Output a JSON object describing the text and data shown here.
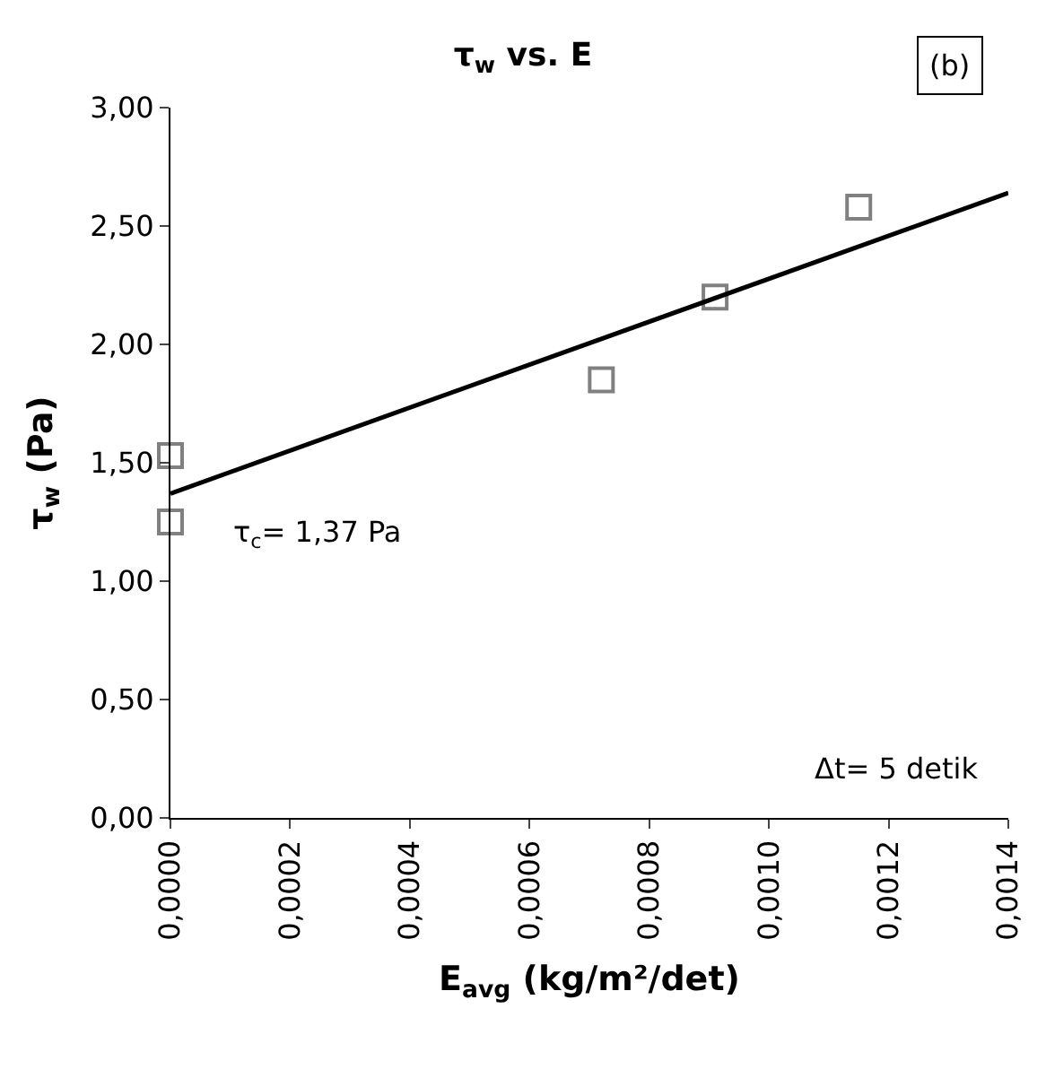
{
  "chart_data": {
    "type": "scatter",
    "title": "τ$_{w}$ vs. E",
    "xlabel": "E$_{avg}$ (kg/m²/det)",
    "ylabel": "τ$_{w}$ (Pa)",
    "series": [
      {
        "color": "#808080",
        "marker": "square",
        "x": [
          0.0,
          0.0,
          0.00072,
          0.00091,
          0.00115
        ],
        "values": [
          1.53,
          1.25,
          1.85,
          2.2,
          2.58
        ]
      },
      {
        "type": "line",
        "color": "#000000",
        "marker": "none",
        "line_style": "solid",
        "x": [
          0.0,
          0.0014
        ],
        "values": [
          1.37,
          2.64
        ]
      }
    ],
    "xlim": [
      0,
      0.0014
    ],
    "ylim": [
      0,
      3
    ],
    "xticks": [
      {
        "value": 0,
        "label": "0,0000"
      },
      {
        "value": 0.0002,
        "label": "0,0002"
      },
      {
        "value": 0.0004,
        "label": "0,0004"
      },
      {
        "value": 0.0006,
        "label": "0,0006"
      },
      {
        "value": 0.0008,
        "label": "0,0008"
      },
      {
        "value": 0.001,
        "label": "0,0010"
      },
      {
        "value": 0.0012,
        "label": "0,0012"
      },
      {
        "value": 0.0014,
        "label": "0,0014"
      }
    ],
    "yticks": [
      {
        "value": 0,
        "label": "0,00"
      },
      {
        "value": 0.5,
        "label": "0,50"
      },
      {
        "value": 1,
        "label": "1,00"
      },
      {
        "value": 1.5,
        "label": "1,50"
      },
      {
        "value": 2,
        "label": "2,00"
      },
      {
        "value": 2.5,
        "label": "2,50"
      },
      {
        "value": 3,
        "label": "3,00"
      }
    ],
    "annotations": [
      "(b)",
      "τ$_{c}$= 1,37 Pa",
      "Δt= 5 detik"
    ],
    "grid": false
  }
}
